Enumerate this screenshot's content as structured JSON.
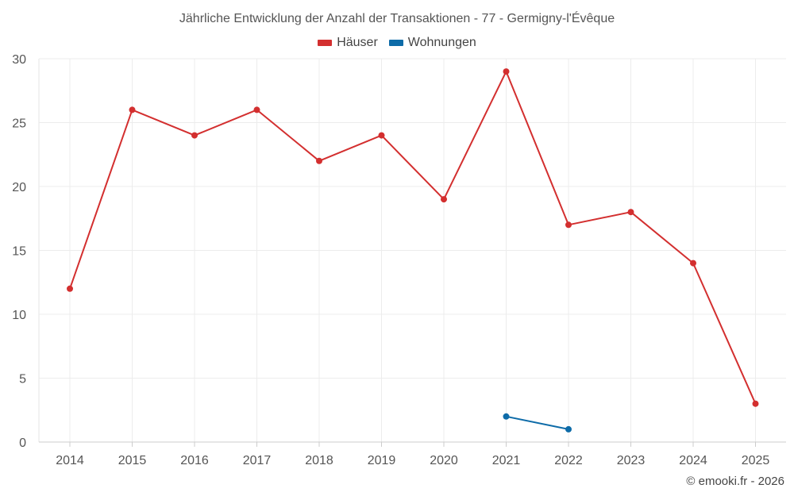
{
  "chart_data": {
    "type": "line",
    "title": "Jährliche Entwicklung der Anzahl der Transaktionen - 77 - Germigny-l'Évêque",
    "xlabel": "",
    "ylabel": "",
    "x": [
      "2014",
      "2015",
      "2016",
      "2017",
      "2018",
      "2019",
      "2020",
      "2021",
      "2022",
      "2023",
      "2024",
      "2025"
    ],
    "ylim": [
      0,
      30
    ],
    "yticks": [
      "0",
      "5",
      "10",
      "15",
      "20",
      "25",
      "30"
    ],
    "grid": true,
    "legend_position": "top-center",
    "series": [
      {
        "name": "Häuser",
        "color": "#d32f2f",
        "values": [
          12,
          26,
          24,
          26,
          22,
          24,
          19,
          29,
          17,
          18,
          14,
          3
        ]
      },
      {
        "name": "Wohnungen",
        "color": "#0d6ba8",
        "values": [
          null,
          null,
          null,
          null,
          null,
          null,
          null,
          2,
          1,
          null,
          null,
          null
        ]
      }
    ]
  },
  "credit": "© emooki.fr - 2026"
}
